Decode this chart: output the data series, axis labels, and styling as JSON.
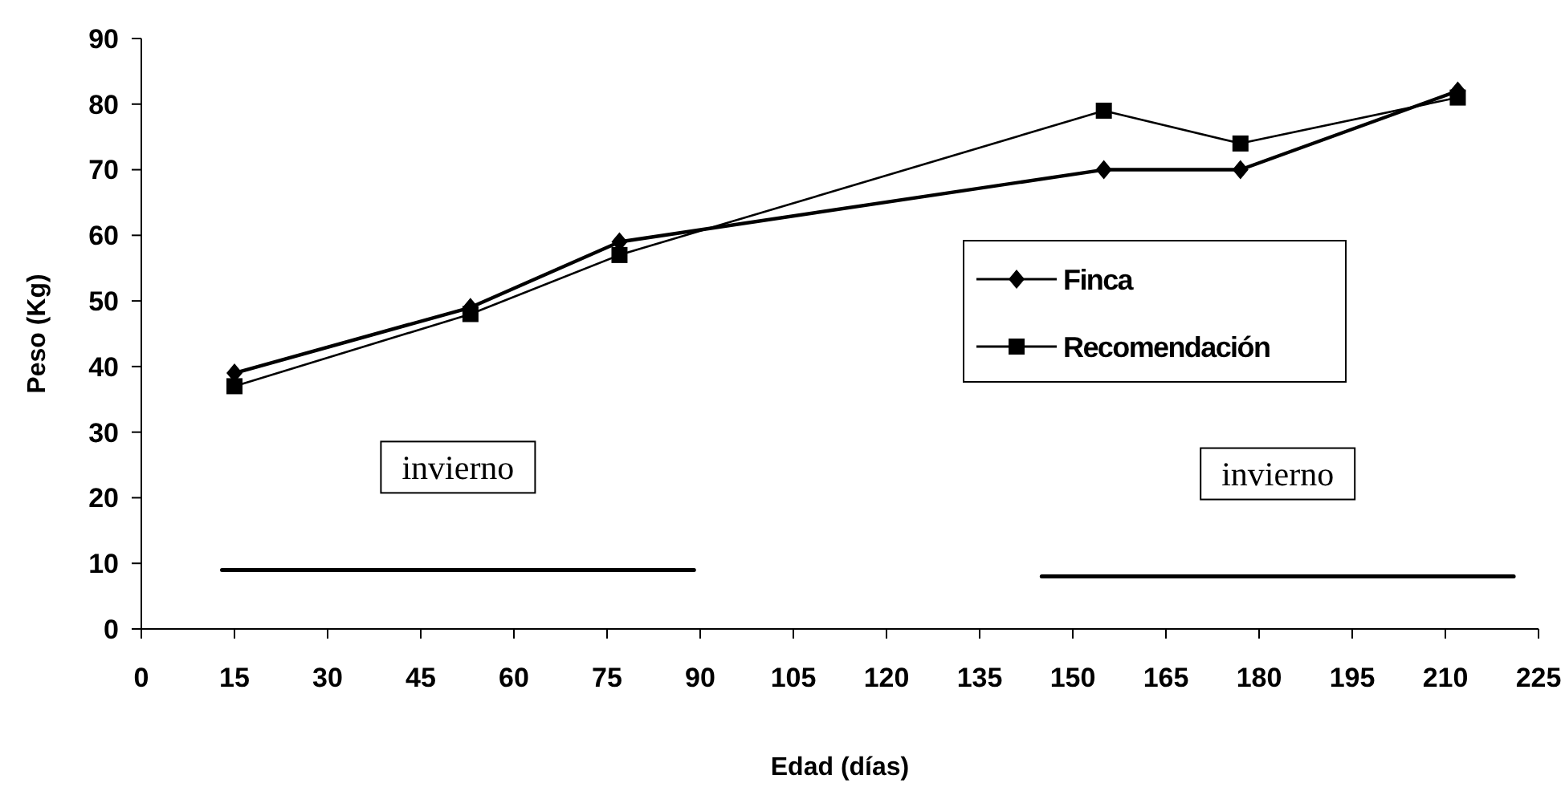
{
  "chart_data": {
    "type": "line",
    "xlabel": "Edad (días)",
    "ylabel": "Peso (Kg)",
    "xlim": [
      0,
      225
    ],
    "xticks": [
      0,
      15,
      30,
      45,
      60,
      75,
      90,
      105,
      120,
      135,
      150,
      165,
      180,
      195,
      210,
      225
    ],
    "ylim": [
      0,
      90
    ],
    "yticks": [
      0,
      10,
      20,
      30,
      40,
      50,
      60,
      70,
      80,
      90
    ],
    "x": [
      15,
      53,
      77,
      155,
      177,
      212
    ],
    "series": [
      {
        "name": "Finca",
        "color": "#000000",
        "marker": "diamond",
        "values": [
          39,
          49,
          59,
          70,
          70,
          82
        ]
      },
      {
        "name": "Recomendación",
        "color": "#000000",
        "marker": "square",
        "values": [
          37,
          48,
          57,
          79,
          74,
          81
        ]
      },
      {
        "color": "#000000",
        "marker": "none",
        "x": [
          13,
          89
        ],
        "values": [
          9,
          9
        ]
      },
      {
        "color": "#000000",
        "marker": "none",
        "x": [
          145,
          221
        ],
        "values": [
          8,
          8
        ]
      }
    ],
    "annotations": [
      "invierno",
      "invierno"
    ],
    "grid": false,
    "legend": "right",
    "line_style": "solid"
  }
}
